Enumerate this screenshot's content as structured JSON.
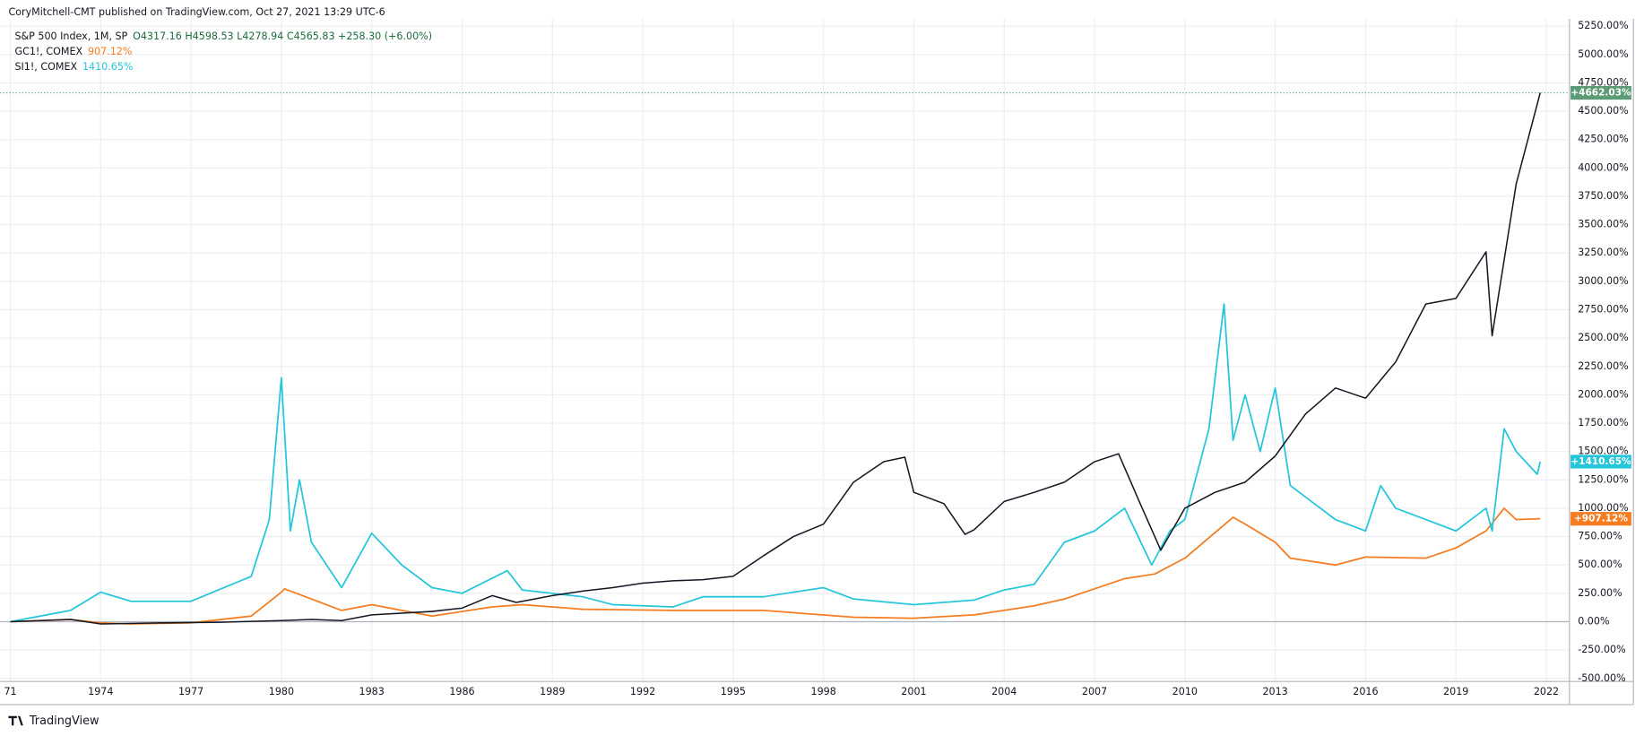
{
  "header": "CoryMitchell-CMT published on TradingView.com, Oct 27, 2021 13:29 UTC-6",
  "footer": "TradingView",
  "chart_data": {
    "type": "line",
    "series": [
      {
        "name": "S&P 500 Index, 1M, SP",
        "legend_value": "O4317.16 H4598.53 L4278.94 C4565.83 +258.30 (+6.00%)",
        "tag": "+4662.03%",
        "color": "#131722",
        "tag_color": "#5d9b76",
        "x": [
          1971,
          1972,
          1973,
          1974,
          1975,
          1976,
          1978,
          1980,
          1981,
          1982,
          1983,
          1985,
          1986,
          1987,
          1987.8,
          1988,
          1989,
          1990,
          1991,
          1992,
          1993,
          1994,
          1995,
          1996,
          1997,
          1998,
          1999,
          2000,
          2000.7,
          2001,
          2002,
          2002.7,
          2003,
          2004,
          2005,
          2006,
          2007,
          2007.8,
          2008.5,
          2009.2,
          2010,
          2011,
          2012,
          2013,
          2014,
          2015,
          2016,
          2017,
          2018,
          2019,
          2020,
          2020.2,
          2021,
          2021.8
        ],
        "values": [
          0,
          10,
          20,
          -20,
          -15,
          -10,
          -5,
          10,
          20,
          10,
          60,
          90,
          120,
          230,
          170,
          180,
          230,
          270,
          300,
          340,
          360,
          370,
          400,
          580,
          750,
          860,
          1230,
          1410,
          1450,
          1140,
          1040,
          770,
          810,
          1060,
          1140,
          1230,
          1410,
          1480,
          1050,
          630,
          1000,
          1140,
          1230,
          1460,
          1830,
          2060,
          1970,
          2290,
          2800,
          2850,
          3260,
          2520,
          3860,
          4662.03
        ]
      },
      {
        "name": "GC1!, COMEX",
        "legend_value": "907.12%",
        "tag": "+907.12%",
        "color": "#f57c1f",
        "tag_color": "#f57c1f",
        "x": [
          1971,
          1973,
          1974,
          1975,
          1977,
          1979,
          1980,
          1980.1,
          1981,
          1982,
          1983,
          1985,
          1987,
          1988,
          1990,
          1993,
          1996,
          1999,
          2001,
          2003,
          2005,
          2006,
          2008,
          2009,
          2010,
          2011.6,
          2012,
          2013,
          2013.5,
          2015,
          2016,
          2018,
          2019,
          2020,
          2020.6,
          2021,
          2021.8
        ],
        "values": [
          0,
          20,
          -10,
          -20,
          -10,
          50,
          260,
          290,
          200,
          100,
          150,
          50,
          130,
          150,
          110,
          100,
          100,
          40,
          30,
          60,
          140,
          200,
          380,
          420,
          560,
          920,
          860,
          700,
          560,
          500,
          570,
          560,
          650,
          800,
          1000,
          900,
          907.12
        ]
      },
      {
        "name": "SI1!, COMEX",
        "legend_value": "1410.65%",
        "tag": "+1410.65%",
        "color": "#26c6da",
        "tag_color": "#26c6da",
        "x": [
          1971,
          1973,
          1974,
          1975,
          1977,
          1979,
          1979.6,
          1980,
          1980.3,
          1980.6,
          1981,
          1982,
          1983,
          1984,
          1985,
          1986,
          1987.5,
          1988,
          1990,
          1991,
          1993,
          1994,
          1996,
          1998,
          1999,
          2001,
          2003,
          2004,
          2005,
          2006,
          2007,
          2008,
          2008.9,
          2009.5,
          2010,
          2010.8,
          2011.3,
          2011.6,
          2012,
          2012.5,
          2013,
          2013.5,
          2014,
          2015,
          2016,
          2016.5,
          2017,
          2018,
          2019,
          2020,
          2020.2,
          2020.6,
          2021,
          2021.7,
          2021.8
        ],
        "values": [
          0,
          100,
          260,
          180,
          180,
          400,
          900,
          2150,
          800,
          1250,
          700,
          300,
          780,
          500,
          300,
          250,
          450,
          280,
          220,
          150,
          130,
          220,
          220,
          300,
          200,
          150,
          190,
          280,
          330,
          700,
          800,
          1000,
          500,
          800,
          900,
          1700,
          2800,
          1600,
          2000,
          1500,
          2060,
          1200,
          1100,
          900,
          800,
          1200,
          1000,
          900,
          800,
          1000,
          800,
          1700,
          1500,
          1300,
          1410.65
        ]
      }
    ],
    "xlim": [
      1970.66,
      2022.77
    ],
    "xticks": [
      {
        "value": 1971,
        "label": "71"
      },
      1974,
      1977,
      1980,
      1983,
      1986,
      1989,
      1992,
      1995,
      1998,
      2001,
      2004,
      2007,
      2010,
      2013,
      2016,
      2019,
      2022
    ],
    "ylim": [
      -527,
      5314
    ],
    "yticks": [
      {
        "value": -500,
        "label": "-500.00%"
      },
      {
        "value": -250,
        "label": "-250.00%"
      },
      {
        "value": 0,
        "label": "0.00%"
      },
      {
        "value": 250,
        "label": "250.00%"
      },
      {
        "value": 500,
        "label": "500.00%"
      },
      {
        "value": 750,
        "label": "750.00%"
      },
      {
        "value": 1000,
        "label": "1000.00%"
      },
      {
        "value": 1250,
        "label": "1250.00%"
      },
      {
        "value": 1500,
        "label": "1500.00%"
      },
      {
        "value": 1750,
        "label": "1750.00%"
      },
      {
        "value": 2000,
        "label": "2000.00%"
      },
      {
        "value": 2250,
        "label": "2250.00%"
      },
      {
        "value": 2500,
        "label": "2500.00%"
      },
      {
        "value": 2750,
        "label": "2750.00%"
      },
      {
        "value": 3000,
        "label": "3000.00%"
      },
      {
        "value": 3250,
        "label": "3250.00%"
      },
      {
        "value": 3500,
        "label": "3500.00%"
      },
      {
        "value": 3750,
        "label": "3750.00%"
      },
      {
        "value": 4000,
        "label": "4000.00%"
      },
      {
        "value": 4250,
        "label": "4250.00%"
      },
      {
        "value": 4500,
        "label": "4500.00%"
      },
      {
        "value": 4750,
        "label": "4750.00%"
      },
      {
        "value": 5000,
        "label": "5000.00%"
      },
      {
        "value": 5250,
        "label": "5250.00%"
      }
    ],
    "grid": true
  }
}
